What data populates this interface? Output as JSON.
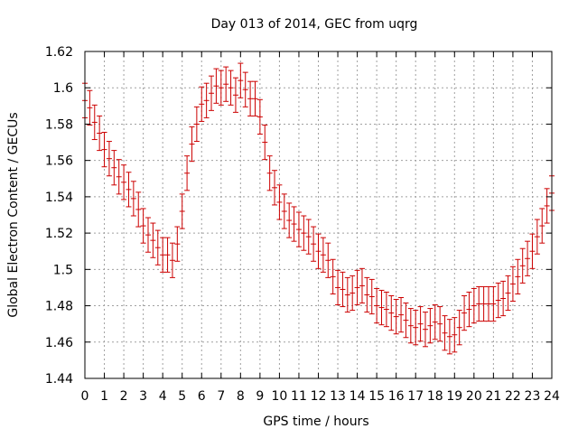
{
  "chart_data": {
    "type": "scatter",
    "title": "Day 013 of 2014, GEC from uqrg",
    "xlabel": "GPS time / hours",
    "ylabel": "Global Electron Content / GECUs",
    "xlim": [
      0,
      24
    ],
    "ylim": [
      1.44,
      1.62
    ],
    "x_ticks": [
      0,
      1,
      2,
      3,
      4,
      5,
      6,
      7,
      8,
      9,
      10,
      11,
      12,
      13,
      14,
      15,
      16,
      17,
      18,
      19,
      20,
      21,
      22,
      23,
      24
    ],
    "x_tick_labels": [
      "0",
      "1",
      "2",
      "3",
      "4",
      "5",
      "6",
      "7",
      "8",
      "9",
      "10",
      "11",
      "12",
      "13",
      "14",
      "15",
      "16",
      "17",
      "18",
      "19",
      "20",
      "21",
      "22",
      "23",
      "24"
    ],
    "y_ticks": [
      1.44,
      1.46,
      1.48,
      1.5,
      1.52,
      1.54,
      1.56,
      1.58,
      1.6,
      1.62
    ],
    "y_tick_labels": [
      "1.44",
      "1.46",
      "1.48",
      "1.5",
      "1.52",
      "1.54",
      "1.56",
      "1.58",
      "1.6",
      "1.62"
    ],
    "grid": true,
    "colors": {
      "series": "#cc0000",
      "grid": "#a0a0a0",
      "axis": "#000000"
    },
    "series": [
      {
        "name": "GEC",
        "error": 0.0095,
        "x": [
          0,
          0.25,
          0.5,
          0.75,
          1,
          1.25,
          1.5,
          1.75,
          2,
          2.25,
          2.5,
          2.75,
          3,
          3.25,
          3.5,
          3.75,
          4,
          4.25,
          4.5,
          4.75,
          5,
          5.25,
          5.5,
          5.75,
          6,
          6.25,
          6.5,
          6.75,
          7,
          7.25,
          7.5,
          7.75,
          8,
          8.25,
          8.5,
          8.75,
          9,
          9.25,
          9.5,
          9.75,
          10,
          10.25,
          10.5,
          10.75,
          11,
          11.25,
          11.5,
          11.75,
          12,
          12.25,
          12.5,
          12.75,
          13,
          13.25,
          13.5,
          13.75,
          14,
          14.25,
          14.5,
          14.75,
          15,
          15.25,
          15.5,
          15.75,
          16,
          16.25,
          16.5,
          16.75,
          17,
          17.25,
          17.5,
          17.75,
          18,
          18.25,
          18.5,
          18.75,
          19,
          19.25,
          19.5,
          19.75,
          20,
          20.25,
          20.5,
          20.75,
          21,
          21.25,
          21.5,
          21.75,
          22,
          22.25,
          22.5,
          22.75,
          23,
          23.25,
          23.5,
          23.75,
          24
        ],
        "values": [
          1.593,
          1.589,
          1.581,
          1.575,
          1.566,
          1.561,
          1.556,
          1.551,
          1.548,
          1.544,
          1.539,
          1.533,
          1.524,
          1.519,
          1.516,
          1.512,
          1.508,
          1.508,
          1.505,
          1.514,
          1.532,
          1.553,
          1.569,
          1.58,
          1.591,
          1.593,
          1.597,
          1.601,
          1.6,
          1.602,
          1.6,
          1.596,
          1.604,
          1.599,
          1.594,
          1.594,
          1.584,
          1.57,
          1.553,
          1.545,
          1.537,
          1.532,
          1.527,
          1.525,
          1.522,
          1.52,
          1.518,
          1.514,
          1.51,
          1.508,
          1.505,
          1.496,
          1.49,
          1.489,
          1.486,
          1.487,
          1.49,
          1.491,
          1.486,
          1.485,
          1.48,
          1.479,
          1.478,
          1.476,
          1.474,
          1.475,
          1.472,
          1.469,
          1.468,
          1.47,
          1.467,
          1.469,
          1.471,
          1.47,
          1.465,
          1.463,
          1.464,
          1.468,
          1.476,
          1.478,
          1.48,
          1.481,
          1.481,
          1.481,
          1.481,
          1.483,
          1.484,
          1.487,
          1.492,
          1.496,
          1.502,
          1.506,
          1.51,
          1.518,
          1.524,
          1.535,
          1.542
        ]
      }
    ]
  }
}
